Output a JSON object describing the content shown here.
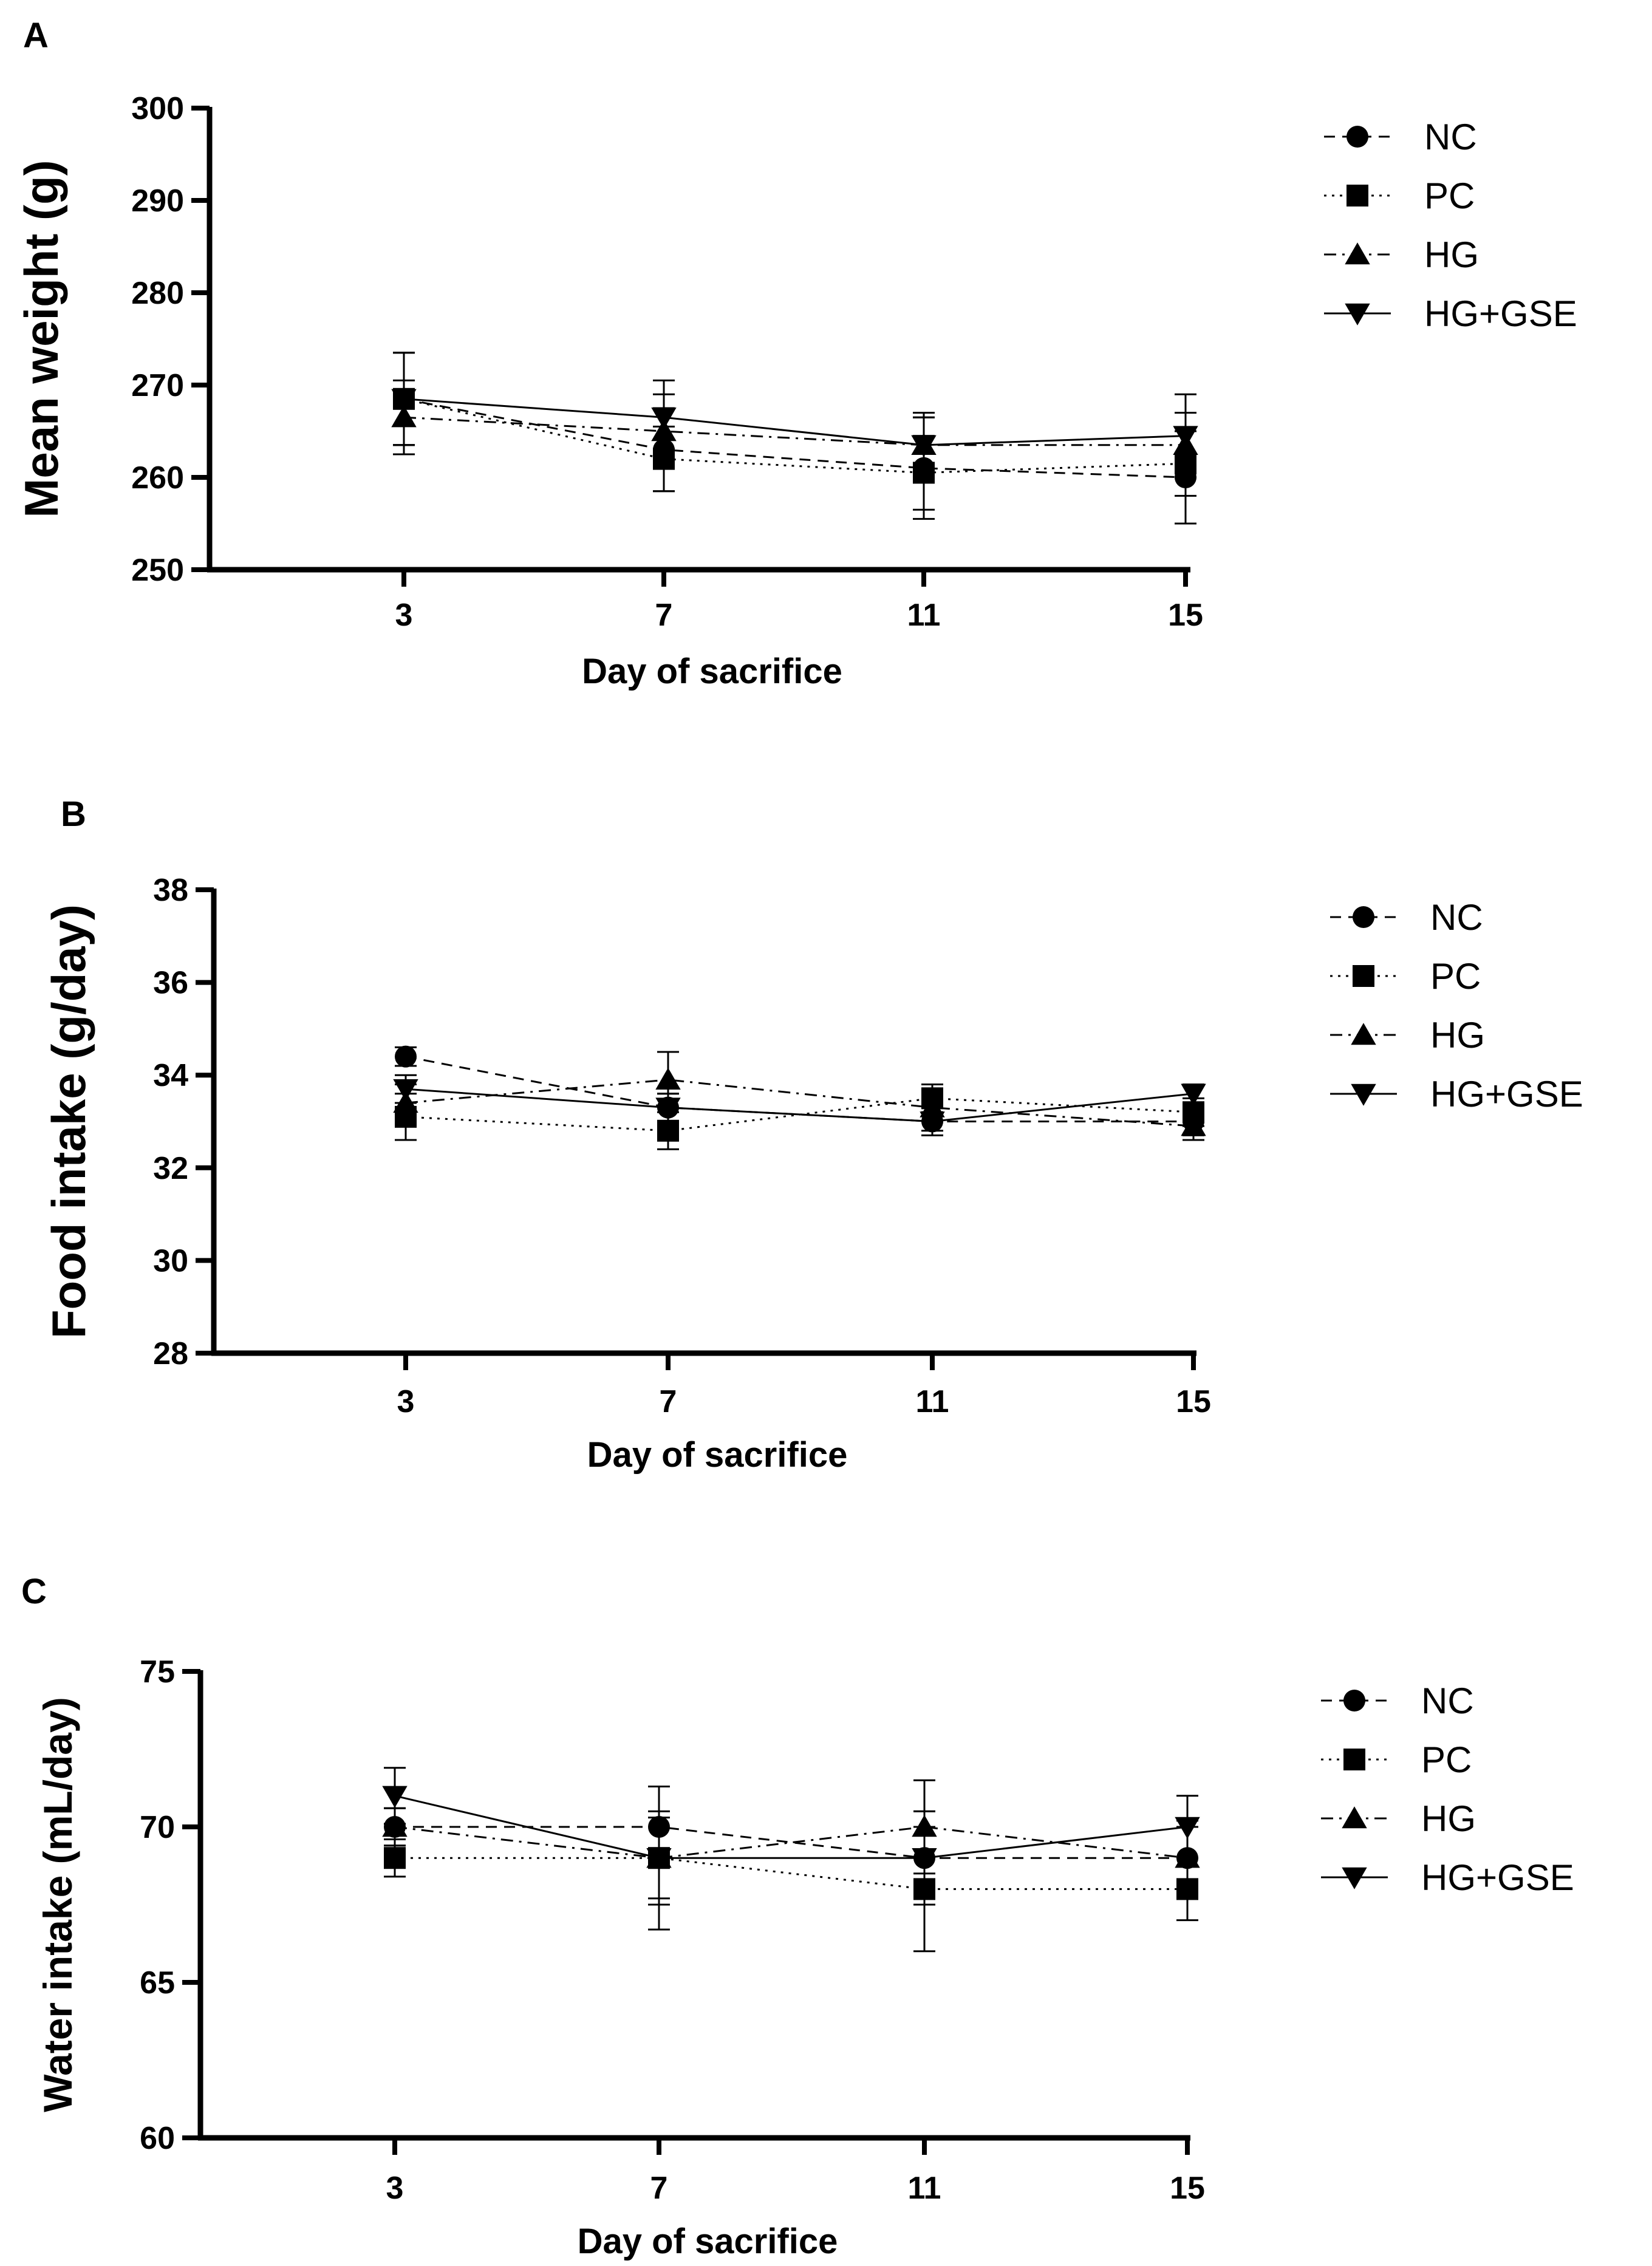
{
  "chart_data": [
    {
      "type": "line",
      "panel": "A",
      "title": "",
      "xlabel": "Day of sacrifice",
      "ylabel": "Mean weight (g)",
      "x": [
        3,
        7,
        11,
        15
      ],
      "xticks": [
        "3",
        "7",
        "11",
        "15"
      ],
      "ylim": [
        250,
        300
      ],
      "yticks": [
        "250",
        "260",
        "270",
        "280",
        "290",
        "300"
      ],
      "grid": false,
      "legend_position": "top-right",
      "series": [
        {
          "name": "NC",
          "marker": "circle",
          "line": "dashed",
          "values": [
            268.5,
            263,
            261,
            260
          ],
          "errors": [
            5,
            4.5,
            5.5,
            5
          ]
        },
        {
          "name": "PC",
          "marker": "square",
          "line": "dotted",
          "values": [
            268.5,
            262,
            260.5,
            261.5
          ],
          "errors": [
            5,
            3.5,
            4,
            3.5
          ]
        },
        {
          "name": "HG",
          "marker": "triangle-up",
          "line": "dashdot",
          "values": [
            266.5,
            265,
            263.5,
            263.5
          ],
          "errors": [
            4,
            4,
            3,
            3.5
          ]
        },
        {
          "name": "HG+GSE",
          "marker": "triangle-down",
          "line": "solid",
          "values": [
            268.5,
            266.5,
            263.5,
            264.5
          ],
          "errors": [
            5,
            4,
            3.5,
            4.5
          ]
        }
      ]
    },
    {
      "type": "line",
      "panel": "B",
      "title": "",
      "xlabel": "Day of sacrifice",
      "ylabel": "Food intake (g/day)",
      "x": [
        3,
        7,
        11,
        15
      ],
      "xticks": [
        "3",
        "7",
        "11",
        "15"
      ],
      "ylim": [
        28,
        38
      ],
      "yticks": [
        "28",
        "30",
        "32",
        "34",
        "36",
        "38"
      ],
      "grid": false,
      "legend_position": "top-right",
      "series": [
        {
          "name": "NC",
          "marker": "circle",
          "line": "dashed",
          "values": [
            34.4,
            33.3,
            33.0,
            33.0
          ],
          "errors": [
            0.2,
            0.3,
            0.3,
            0.3
          ]
        },
        {
          "name": "PC",
          "marker": "square",
          "line": "dotted",
          "values": [
            33.1,
            32.8,
            33.5,
            33.2
          ],
          "errors": [
            0.5,
            0.4,
            0.3,
            0.3
          ]
        },
        {
          "name": "HG",
          "marker": "triangle-up",
          "line": "dashdot",
          "values": [
            33.4,
            33.9,
            33.3,
            32.9
          ],
          "errors": [
            0.4,
            0.6,
            0.3,
            0.3
          ]
        },
        {
          "name": "HG+GSE",
          "marker": "triangle-down",
          "line": "solid",
          "values": [
            33.7,
            33.3,
            33.0,
            33.6
          ],
          "errors": [
            0.3,
            0.3,
            0.2,
            0.2
          ]
        }
      ]
    },
    {
      "type": "line",
      "panel": "C",
      "title": "",
      "xlabel": "Day of sacrifice",
      "ylabel": "Water intake (mL/day)",
      "x": [
        3,
        7,
        11,
        15
      ],
      "xticks": [
        "3",
        "7",
        "11",
        "15"
      ],
      "ylim": [
        60,
        75
      ],
      "yticks": [
        "60",
        "65",
        "70",
        "75"
      ],
      "grid": false,
      "legend_position": "top-right",
      "series": [
        {
          "name": "NC",
          "marker": "circle",
          "line": "dashed",
          "values": [
            70,
            70,
            69,
            69
          ],
          "errors": [
            0.6,
            1.3,
            1.5,
            1.2
          ]
        },
        {
          "name": "PC",
          "marker": "square",
          "line": "dotted",
          "values": [
            69,
            69,
            68,
            68
          ],
          "errors": [
            0.6,
            2.3,
            2,
            1
          ]
        },
        {
          "name": "HG",
          "marker": "triangle-up",
          "line": "dashdot",
          "values": [
            70,
            69,
            70,
            69
          ],
          "errors": [
            0.6,
            1.5,
            1.5,
            1
          ]
        },
        {
          "name": "HG+GSE",
          "marker": "triangle-down",
          "line": "solid",
          "values": [
            71,
            69,
            69,
            70
          ],
          "errors": [
            0.9,
            1.3,
            1.5,
            1
          ]
        }
      ]
    }
  ]
}
